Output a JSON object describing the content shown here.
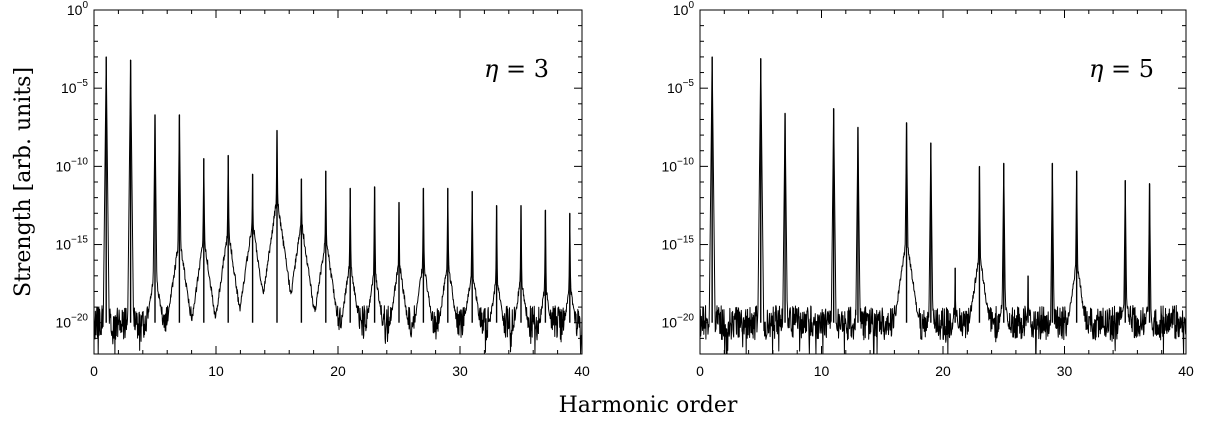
{
  "chart_data": [
    {
      "type": "line",
      "annotation": {
        "symbol": "η",
        "text": " = 3"
      },
      "ylabel": "Strength [arb. units]",
      "xlim": [
        0,
        40
      ],
      "ylim_log10": [
        -22,
        0
      ],
      "yscale": "log",
      "x_ticks": [
        "0",
        "10",
        "20",
        "30",
        "40"
      ],
      "y_ticks": [
        {
          "base": "10",
          "exp": "0"
        },
        {
          "base": "10",
          "exp": "−5"
        },
        {
          "base": "10",
          "exp": "−10"
        },
        {
          "base": "10",
          "exp": "−15"
        },
        {
          "base": "10",
          "exp": "−20"
        }
      ],
      "noise_floor_log10": -20,
      "peaks": [
        {
          "x": 1,
          "log10": -3.0,
          "wing": -18.8
        },
        {
          "x": 3,
          "log10": -3.2,
          "wing": -18.6
        },
        {
          "x": 5,
          "log10": -6.7,
          "wing": -16.5
        },
        {
          "x": 7,
          "log10": -6.7,
          "wing": -14.5
        },
        {
          "x": 9,
          "log10": -9.5,
          "wing": -14.5
        },
        {
          "x": 11,
          "log10": -9.3,
          "wing": -14.0
        },
        {
          "x": 13,
          "log10": -10.5,
          "wing": -13.5
        },
        {
          "x": 15,
          "log10": -7.7,
          "wing": -12.0
        },
        {
          "x": 17,
          "log10": -10.8,
          "wing": -13.5
        },
        {
          "x": 19,
          "log10": -10.3,
          "wing": -14.5
        },
        {
          "x": 21,
          "log10": -11.4,
          "wing": -16.0
        },
        {
          "x": 23,
          "log10": -11.3,
          "wing": -16.5
        },
        {
          "x": 25,
          "log10": -12.3,
          "wing": -16.0
        },
        {
          "x": 27,
          "log10": -11.4,
          "wing": -16.0
        },
        {
          "x": 29,
          "log10": -11.4,
          "wing": -16.0
        },
        {
          "x": 31,
          "log10": -11.6,
          "wing": -16.5
        },
        {
          "x": 33,
          "log10": -12.5,
          "wing": -17.0
        },
        {
          "x": 35,
          "log10": -12.5,
          "wing": -17.0
        },
        {
          "x": 37,
          "log10": -12.8,
          "wing": -17.5
        },
        {
          "x": 39,
          "log10": -13.0,
          "wing": -17.5
        }
      ]
    },
    {
      "type": "line",
      "annotation": {
        "symbol": "η",
        "text": " = 5"
      },
      "ylabel": "",
      "xlim": [
        0,
        40
      ],
      "ylim_log10": [
        -22,
        0
      ],
      "yscale": "log",
      "x_ticks": [
        "0",
        "10",
        "20",
        "30",
        "40"
      ],
      "y_ticks": [
        {
          "base": "10",
          "exp": "0"
        },
        {
          "base": "10",
          "exp": "−5"
        },
        {
          "base": "10",
          "exp": "−10"
        },
        {
          "base": "10",
          "exp": "−15"
        },
        {
          "base": "10",
          "exp": "−20"
        }
      ],
      "noise_floor_log10": -20,
      "peaks": [
        {
          "x": 1,
          "log10": -3.0,
          "wing": -19.5
        },
        {
          "x": 5,
          "log10": -3.1,
          "wing": -19.0
        },
        {
          "x": 7,
          "log10": -6.6,
          "wing": -19.0
        },
        {
          "x": 11,
          "log10": -6.3,
          "wing": -19.0
        },
        {
          "x": 13,
          "log10": -7.5,
          "wing": -19.0
        },
        {
          "x": 17,
          "log10": -7.2,
          "wing": -14.5
        },
        {
          "x": 19,
          "log10": -8.5,
          "wing": -18.5
        },
        {
          "x": 21,
          "log10": -16.5,
          "wing": -19.0
        },
        {
          "x": 23,
          "log10": -10.0,
          "wing": -15.5
        },
        {
          "x": 25,
          "log10": -9.8,
          "wing": -18.0
        },
        {
          "x": 27,
          "log10": -17.0,
          "wing": -19.0
        },
        {
          "x": 29,
          "log10": -9.8,
          "wing": -19.0
        },
        {
          "x": 31,
          "log10": -10.3,
          "wing": -16.0
        },
        {
          "x": 35,
          "log10": -10.9,
          "wing": -18.0
        },
        {
          "x": 37,
          "log10": -11.1,
          "wing": -19.0
        }
      ]
    }
  ],
  "xlabel": "Harmonic order"
}
